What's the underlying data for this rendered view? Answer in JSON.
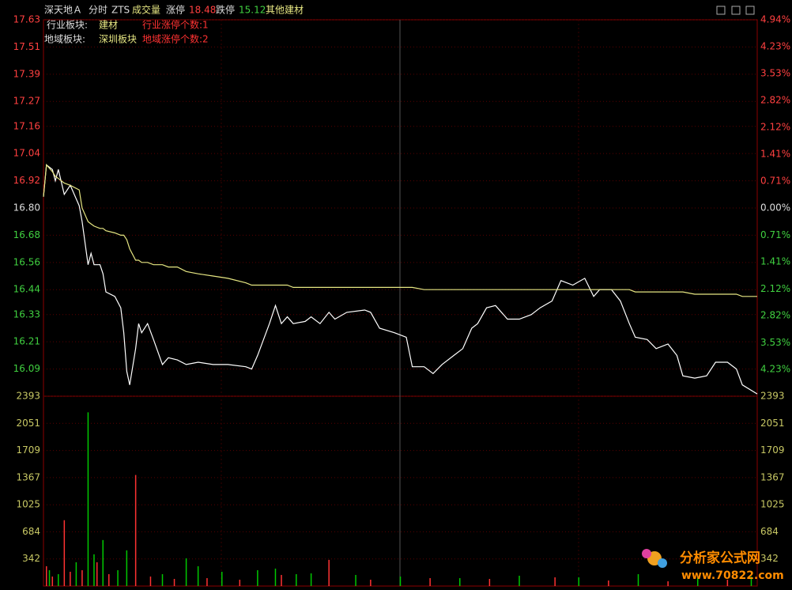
{
  "header": {
    "stock": "深天地Ａ",
    "mode": "分时",
    "tag": "ZTS",
    "indicator": "成交量",
    "limit_up_label": "涨停",
    "limit_up": "18.48",
    "limit_down_label": "跌停",
    "limit_down": "15.12",
    "sector": "其他建材"
  },
  "info": {
    "rows": [
      [
        "行业板块:",
        "建材",
        "行业涨停个数:1"
      ],
      [
        "地域板块:",
        "深圳板块",
        "地域涨停个数:2"
      ]
    ]
  },
  "watermark": {
    "site": "分析家公式网",
    "url": "www.70822.com"
  },
  "chart_data": [
    {
      "type": "line",
      "xlim": [
        0,
        240
      ],
      "ylim": [
        15.97,
        17.63
      ],
      "yticks": [
        17.63,
        17.51,
        17.39,
        17.27,
        17.16,
        17.04,
        16.92,
        {
          "value": 16.8,
          "label": "16.80"
        },
        16.68,
        16.56,
        16.44,
        16.33,
        16.21,
        16.09
      ],
      "y2lim": [
        -4.93,
        4.94
      ],
      "y2ticks": [
        {
          "value": 4.94,
          "label": "4.94%"
        },
        {
          "value": 4.23,
          "label": "4.23%"
        },
        {
          "value": 3.53,
          "label": "3.53%"
        },
        {
          "value": 2.82,
          "label": "2.82%"
        },
        {
          "value": 2.12,
          "label": "2.12%"
        },
        {
          "value": 1.41,
          "label": "1.41%"
        },
        {
          "value": 0.71,
          "label": "0.71%"
        },
        {
          "value": 0,
          "label": "0.00%"
        },
        {
          "value": -0.71,
          "label": "0.71%"
        },
        {
          "value": -1.41,
          "label": "1.41%"
        },
        {
          "value": -2.12,
          "label": "2.12%"
        },
        {
          "value": -2.82,
          "label": "2.82%"
        },
        {
          "value": -3.53,
          "label": "3.53%"
        },
        {
          "value": -4.23,
          "label": "4.23%"
        }
      ],
      "grid": true,
      "x": [
        0,
        1,
        3,
        4,
        5,
        7,
        9,
        12,
        13,
        15,
        16,
        17,
        19,
        20,
        21,
        24,
        26,
        27,
        28,
        29,
        31,
        32,
        33,
        35,
        37,
        40,
        42,
        45,
        48,
        52,
        57,
        62,
        68,
        70,
        72,
        74,
        76,
        78,
        80,
        82,
        84,
        88,
        90,
        93,
        96,
        98,
        102,
        108,
        110,
        113,
        118,
        122,
        124,
        128,
        131,
        134,
        138,
        141,
        144,
        146,
        149,
        152,
        156,
        160,
        164,
        167,
        171,
        174,
        178,
        182,
        185,
        187,
        191,
        194,
        197,
        199,
        203,
        206,
        210,
        213,
        215,
        219,
        223,
        226,
        230,
        233,
        235,
        240
      ],
      "series": [
        {
          "color": "#ffffff",
          "values": [
            16.85,
            16.99,
            16.97,
            16.92,
            16.97,
            16.86,
            16.9,
            16.81,
            16.74,
            16.55,
            16.6,
            16.55,
            16.55,
            16.51,
            16.43,
            16.41,
            16.36,
            16.25,
            16.08,
            16.02,
            16.18,
            16.29,
            16.25,
            16.29,
            16.22,
            16.11,
            16.14,
            16.13,
            16.11,
            16.12,
            16.11,
            16.11,
            16.1,
            16.09,
            16.15,
            16.22,
            16.29,
            16.37,
            16.29,
            16.32,
            16.29,
            16.3,
            16.32,
            16.29,
            16.34,
            16.31,
            16.34,
            16.35,
            16.34,
            16.27,
            16.25,
            16.23,
            16.1,
            16.1,
            16.07,
            16.11,
            16.15,
            16.18,
            16.27,
            16.29,
            16.36,
            16.37,
            16.31,
            16.31,
            16.33,
            16.36,
            16.39,
            16.48,
            16.46,
            16.49,
            16.41,
            16.44,
            16.44,
            16.39,
            16.29,
            16.23,
            16.22,
            16.18,
            16.2,
            16.15,
            16.06,
            16.05,
            16.06,
            16.12,
            16.12,
            16.09,
            16.02,
            15.98
          ]
        },
        {
          "color": "#e6e682",
          "values": [
            16.85,
            16.99,
            16.96,
            16.94,
            16.93,
            16.91,
            16.9,
            16.88,
            16.8,
            16.74,
            16.73,
            16.72,
            16.71,
            16.71,
            16.7,
            16.69,
            16.68,
            16.68,
            16.66,
            16.62,
            16.57,
            16.57,
            16.56,
            16.56,
            16.55,
            16.55,
            16.54,
            16.54,
            16.52,
            16.51,
            16.5,
            16.49,
            16.47,
            16.46,
            16.46,
            16.46,
            16.46,
            16.46,
            16.46,
            16.46,
            16.45,
            16.45,
            16.45,
            16.45,
            16.45,
            16.45,
            16.45,
            16.45,
            16.45,
            16.45,
            16.45,
            16.45,
            16.45,
            16.44,
            16.44,
            16.44,
            16.44,
            16.44,
            16.44,
            16.44,
            16.44,
            16.44,
            16.44,
            16.44,
            16.44,
            16.44,
            16.44,
            16.44,
            16.44,
            16.44,
            16.44,
            16.44,
            16.44,
            16.44,
            16.44,
            16.43,
            16.43,
            16.43,
            16.43,
            16.43,
            16.43,
            16.42,
            16.42,
            16.42,
            16.42,
            16.42,
            16.41,
            16.41
          ]
        }
      ]
    },
    {
      "type": "bar",
      "xlim": [
        0,
        240
      ],
      "ylim": [
        0,
        2393
      ],
      "yticks": [
        342,
        684,
        1025,
        1367,
        1709,
        2051,
        2393
      ],
      "grid": true,
      "series": [
        {
          "color": "#ff3232",
          "x": [
            1,
            3,
            7,
            9,
            13,
            18,
            22,
            31,
            36,
            44,
            55,
            66,
            80,
            96,
            110,
            130,
            150,
            172,
            190,
            210,
            230
          ],
          "values": [
            250,
            120,
            830,
            180,
            200,
            300,
            150,
            1400,
            120,
            90,
            100,
            80,
            140,
            330,
            80,
            100,
            90,
            110,
            70,
            60,
            80
          ]
        },
        {
          "color": "#00c800",
          "x": [
            2,
            5,
            11,
            15,
            17,
            20,
            25,
            28,
            40,
            48,
            52,
            60,
            72,
            78,
            85,
            90,
            105,
            120,
            140,
            160,
            180,
            200,
            220,
            238
          ],
          "values": [
            200,
            150,
            300,
            2190,
            400,
            580,
            200,
            450,
            150,
            350,
            250,
            180,
            200,
            220,
            150,
            160,
            140,
            120,
            100,
            130,
            110,
            150,
            100,
            120
          ]
        }
      ]
    }
  ]
}
